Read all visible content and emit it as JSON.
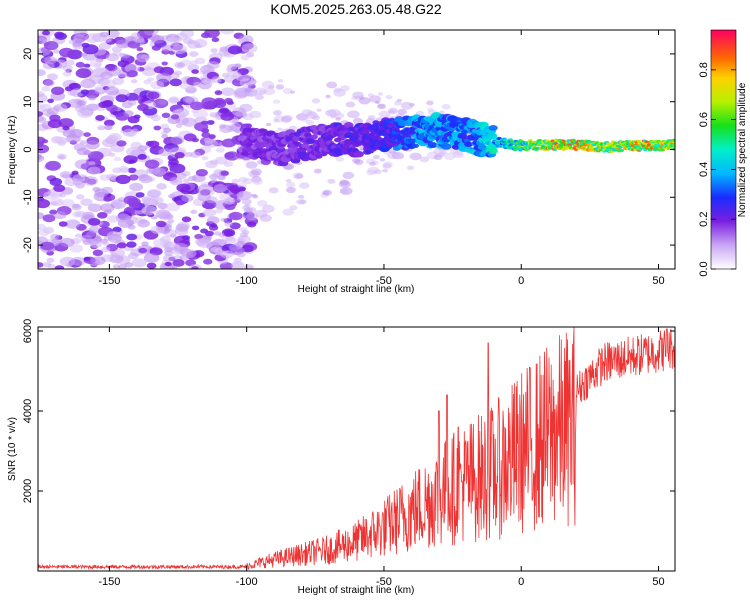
{
  "figure": {
    "title": "KOM5.2025.263.05.48.G22"
  },
  "chart_data": [
    {
      "id": "spectrogram",
      "type": "heatmap",
      "xlabel": "Height of straight line (km)",
      "ylabel": "Frequency (Hz)",
      "xlim": [
        -176,
        56
      ],
      "ylim": [
        -25,
        25
      ],
      "xticks": [
        -150,
        -100,
        -50,
        0,
        50
      ],
      "yticks": [
        -20,
        -10,
        0,
        10,
        20
      ],
      "colorbar": {
        "label": "Normalized spectral amplitude",
        "range": [
          0,
          0.96
        ],
        "ticks": [
          0.0,
          0.2,
          0.4,
          0.6,
          0.8
        ]
      },
      "ridge": [
        {
          "x": -100,
          "y": 2
        },
        {
          "x": -90,
          "y": 0
        },
        {
          "x": -80,
          "y": 1
        },
        {
          "x": -70,
          "y": 2
        },
        {
          "x": -60,
          "y": 2
        },
        {
          "x": -50,
          "y": 3
        },
        {
          "x": -40,
          "y": 3.5
        },
        {
          "x": -30,
          "y": 4
        },
        {
          "x": -20,
          "y": 3
        },
        {
          "x": -10,
          "y": 1.5
        },
        {
          "x": 0,
          "y": 0.8
        },
        {
          "x": 10,
          "y": 1
        },
        {
          "x": 20,
          "y": 1
        },
        {
          "x": 30,
          "y": 0.5
        },
        {
          "x": 40,
          "y": 0.8
        },
        {
          "x": 50,
          "y": 0.8
        },
        {
          "x": 56,
          "y": 1
        }
      ],
      "ridge_amplitude": [
        {
          "x": -100,
          "v": 0.12
        },
        {
          "x": -70,
          "v": 0.15
        },
        {
          "x": -50,
          "v": 0.2
        },
        {
          "x": -35,
          "v": 0.35
        },
        {
          "x": -20,
          "v": 0.3
        },
        {
          "x": -10,
          "v": 0.4
        },
        {
          "x": 0,
          "v": 0.55
        },
        {
          "x": 10,
          "v": 0.75
        },
        {
          "x": 20,
          "v": 0.85
        },
        {
          "x": 30,
          "v": 0.65
        },
        {
          "x": 45,
          "v": 0.8
        },
        {
          "x": 56,
          "v": 0.7
        }
      ]
    },
    {
      "id": "snr",
      "type": "line",
      "xlabel": "Height of straight line (km)",
      "ylabel": "SNR (10 * v/v)",
      "xlim": [
        -176,
        56
      ],
      "ylim": [
        0,
        6100
      ],
      "xticks": [
        -150,
        -100,
        -50,
        0,
        50
      ],
      "yticks": [
        2000,
        4000,
        6000
      ],
      "color": "#ee3333",
      "envelope": [
        {
          "x": -176,
          "y": 100
        },
        {
          "x": -110,
          "y": 100
        },
        {
          "x": -100,
          "y": 150
        },
        {
          "x": -90,
          "y": 350
        },
        {
          "x": -80,
          "y": 500
        },
        {
          "x": -70,
          "y": 650
        },
        {
          "x": -60,
          "y": 900
        },
        {
          "x": -50,
          "y": 1300
        },
        {
          "x": -40,
          "y": 1800
        },
        {
          "x": -30,
          "y": 2300
        },
        {
          "x": -20,
          "y": 2700
        },
        {
          "x": -10,
          "y": 3000
        },
        {
          "x": 0,
          "y": 3600
        },
        {
          "x": 10,
          "y": 4100
        },
        {
          "x": 20,
          "y": 4500
        },
        {
          "x": 30,
          "y": 5200
        },
        {
          "x": 40,
          "y": 5350
        },
        {
          "x": 50,
          "y": 5500
        },
        {
          "x": 56,
          "y": 5600
        }
      ],
      "spikes": [
        {
          "x": -12,
          "y": 5700
        },
        {
          "x": -27,
          "y": 4400
        },
        {
          "x": -30,
          "y": 4000
        },
        {
          "x": -23,
          "y": 3600
        },
        {
          "x": 53,
          "y": 6050
        }
      ]
    }
  ]
}
